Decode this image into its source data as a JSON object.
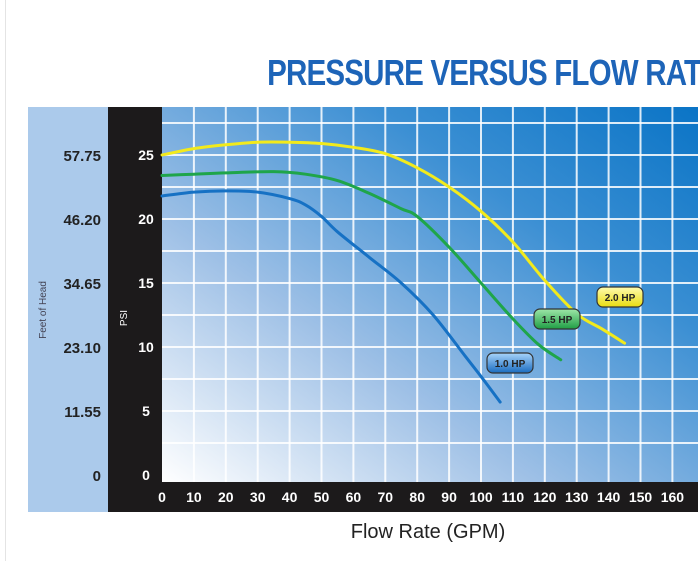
{
  "chart_data": {
    "type": "line",
    "title": "PRESSURE VERSUS FLOW RATE",
    "xlabel": "Flow Rate (GPM)",
    "ylabel": "PSI",
    "ylabel_secondary": "Feet of Head",
    "xlim": [
      0,
      160
    ],
    "ylim": [
      0,
      28.7
    ],
    "grid": true,
    "x_ticks": [
      "0",
      "10",
      "20",
      "30",
      "40",
      "50",
      "60",
      "70",
      "80",
      "90",
      "100",
      "110",
      "120",
      "130",
      "140",
      "150",
      "160"
    ],
    "y_ticks": [
      "0",
      "5",
      "10",
      "15",
      "20",
      "25"
    ],
    "y_ticks_secondary": [
      "0",
      "11.55",
      "23.10",
      "34.65",
      "46.20",
      "57.75"
    ],
    "series": [
      {
        "name": "2.0 HP",
        "color": "#f2ea1c",
        "x": [
          0,
          10,
          20,
          30,
          40,
          50,
          60,
          70,
          80,
          90,
          100,
          110,
          120,
          130,
          138,
          145
        ],
        "y": [
          25,
          25.5,
          25.8,
          26,
          26,
          25.9,
          25.6,
          25.1,
          24,
          22.5,
          20.6,
          18.2,
          15.2,
          12.6,
          11.4,
          10.3
        ]
      },
      {
        "name": "1.5 HP",
        "color": "#1fa54a",
        "x": [
          0,
          10,
          20,
          35,
          45,
          55,
          65,
          75,
          80,
          90,
          100,
          110,
          118,
          125
        ],
        "y": [
          23.4,
          23.5,
          23.6,
          23.7,
          23.5,
          23,
          22,
          20.8,
          20.2,
          17.8,
          15,
          12.2,
          10.2,
          9
        ]
      },
      {
        "name": "1.0 HP",
        "color": "#1671c4",
        "x": [
          0,
          10,
          20,
          30,
          40,
          45,
          50,
          55,
          65,
          75,
          85,
          95,
          100,
          106
        ],
        "y": [
          21.8,
          22.1,
          22.2,
          22.1,
          21.6,
          21.1,
          20.2,
          19,
          17,
          15,
          12.5,
          9.3,
          7.7,
          5.7
        ]
      }
    ]
  }
}
